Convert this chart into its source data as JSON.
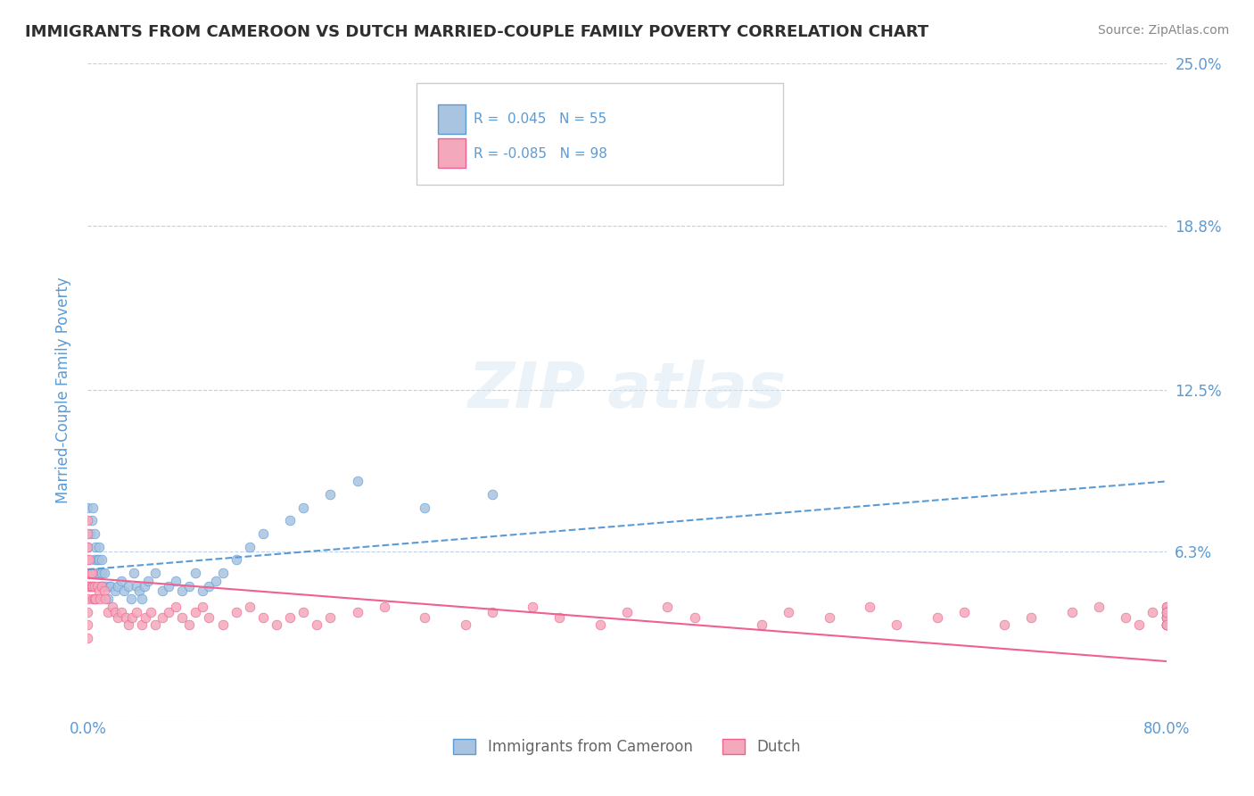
{
  "title": "IMMIGRANTS FROM CAMEROON VS DUTCH MARRIED-COUPLE FAMILY POVERTY CORRELATION CHART",
  "source": "Source: ZipAtlas.com",
  "xlabel": "",
  "ylabel": "Married-Couple Family Poverty",
  "xlim": [
    0,
    0.8
  ],
  "ylim": [
    0,
    0.25
  ],
  "yticks": [
    0,
    0.063,
    0.125,
    0.188,
    0.25
  ],
  "ytick_labels": [
    "",
    "6.3%",
    "12.5%",
    "18.8%",
    "25.0%"
  ],
  "xticks": [
    0,
    0.8
  ],
  "xtick_labels": [
    "0.0%",
    "80.0%"
  ],
  "legend_r1": "R =  0.045",
  "legend_n1": "N = 55",
  "legend_r2": "R = -0.085",
  "legend_n2": "N = 98",
  "legend_label1": "Immigrants from Cameroon",
  "legend_label2": "Dutch",
  "series1_color": "#a8c4e0",
  "series2_color": "#f4a8bb",
  "trendline1_color": "#5b9bd5",
  "trendline2_color": "#f06090",
  "watermark": "ZIPatlas",
  "background_color": "#ffffff",
  "grid_color": "#c0d0e8",
  "series1_x": [
    0.0,
    0.0,
    0.002,
    0.003,
    0.004,
    0.005,
    0.005,
    0.006,
    0.007,
    0.007,
    0.008,
    0.008,
    0.008,
    0.009,
    0.01,
    0.01,
    0.01,
    0.011,
    0.012,
    0.013,
    0.015,
    0.016,
    0.017,
    0.02,
    0.022,
    0.025,
    0.027,
    0.03,
    0.032,
    0.034,
    0.036,
    0.038,
    0.04,
    0.042,
    0.045,
    0.05,
    0.055,
    0.06,
    0.065,
    0.07,
    0.075,
    0.08,
    0.085,
    0.09,
    0.095,
    0.1,
    0.11,
    0.12,
    0.13,
    0.15,
    0.16,
    0.18,
    0.2,
    0.25,
    0.3
  ],
  "series1_y": [
    0.08,
    0.065,
    0.07,
    0.075,
    0.08,
    0.06,
    0.07,
    0.065,
    0.06,
    0.055,
    0.055,
    0.06,
    0.065,
    0.05,
    0.055,
    0.06,
    0.05,
    0.05,
    0.055,
    0.05,
    0.045,
    0.05,
    0.05,
    0.048,
    0.05,
    0.052,
    0.048,
    0.05,
    0.045,
    0.055,
    0.05,
    0.048,
    0.045,
    0.05,
    0.052,
    0.055,
    0.048,
    0.05,
    0.052,
    0.048,
    0.05,
    0.055,
    0.048,
    0.05,
    0.052,
    0.055,
    0.06,
    0.065,
    0.07,
    0.075,
    0.08,
    0.085,
    0.09,
    0.08,
    0.085
  ],
  "series2_x": [
    0.0,
    0.0,
    0.0,
    0.0,
    0.0,
    0.0,
    0.0,
    0.0,
    0.0,
    0.0,
    0.001,
    0.001,
    0.001,
    0.002,
    0.002,
    0.003,
    0.003,
    0.004,
    0.004,
    0.005,
    0.005,
    0.006,
    0.007,
    0.008,
    0.009,
    0.01,
    0.012,
    0.013,
    0.015,
    0.018,
    0.02,
    0.022,
    0.025,
    0.028,
    0.03,
    0.033,
    0.036,
    0.04,
    0.043,
    0.047,
    0.05,
    0.055,
    0.06,
    0.065,
    0.07,
    0.075,
    0.08,
    0.085,
    0.09,
    0.1,
    0.11,
    0.12,
    0.13,
    0.14,
    0.15,
    0.16,
    0.17,
    0.18,
    0.2,
    0.22,
    0.25,
    0.28,
    0.3,
    0.33,
    0.35,
    0.38,
    0.4,
    0.43,
    0.45,
    0.5,
    0.52,
    0.55,
    0.58,
    0.6,
    0.63,
    0.65,
    0.68,
    0.7,
    0.73,
    0.75,
    0.77,
    0.78,
    0.79,
    0.8,
    0.8,
    0.8,
    0.8,
    0.8,
    0.8,
    0.8,
    0.8,
    0.8,
    0.8,
    0.8,
    0.8,
    0.8,
    0.8,
    0.8
  ],
  "series2_y": [
    0.06,
    0.055,
    0.05,
    0.045,
    0.04,
    0.035,
    0.03,
    0.065,
    0.07,
    0.075,
    0.05,
    0.055,
    0.06,
    0.05,
    0.055,
    0.05,
    0.055,
    0.045,
    0.05,
    0.045,
    0.05,
    0.045,
    0.05,
    0.048,
    0.045,
    0.05,
    0.048,
    0.045,
    0.04,
    0.042,
    0.04,
    0.038,
    0.04,
    0.038,
    0.035,
    0.038,
    0.04,
    0.035,
    0.038,
    0.04,
    0.035,
    0.038,
    0.04,
    0.042,
    0.038,
    0.035,
    0.04,
    0.042,
    0.038,
    0.035,
    0.04,
    0.042,
    0.038,
    0.035,
    0.038,
    0.04,
    0.035,
    0.038,
    0.04,
    0.042,
    0.038,
    0.035,
    0.04,
    0.042,
    0.038,
    0.035,
    0.04,
    0.042,
    0.038,
    0.035,
    0.04,
    0.038,
    0.042,
    0.035,
    0.038,
    0.04,
    0.035,
    0.038,
    0.04,
    0.042,
    0.038,
    0.035,
    0.04,
    0.042,
    0.038,
    0.035,
    0.04,
    0.042,
    0.038,
    0.035,
    0.04,
    0.038,
    0.035,
    0.04,
    0.035,
    0.038,
    0.04,
    0.035
  ]
}
